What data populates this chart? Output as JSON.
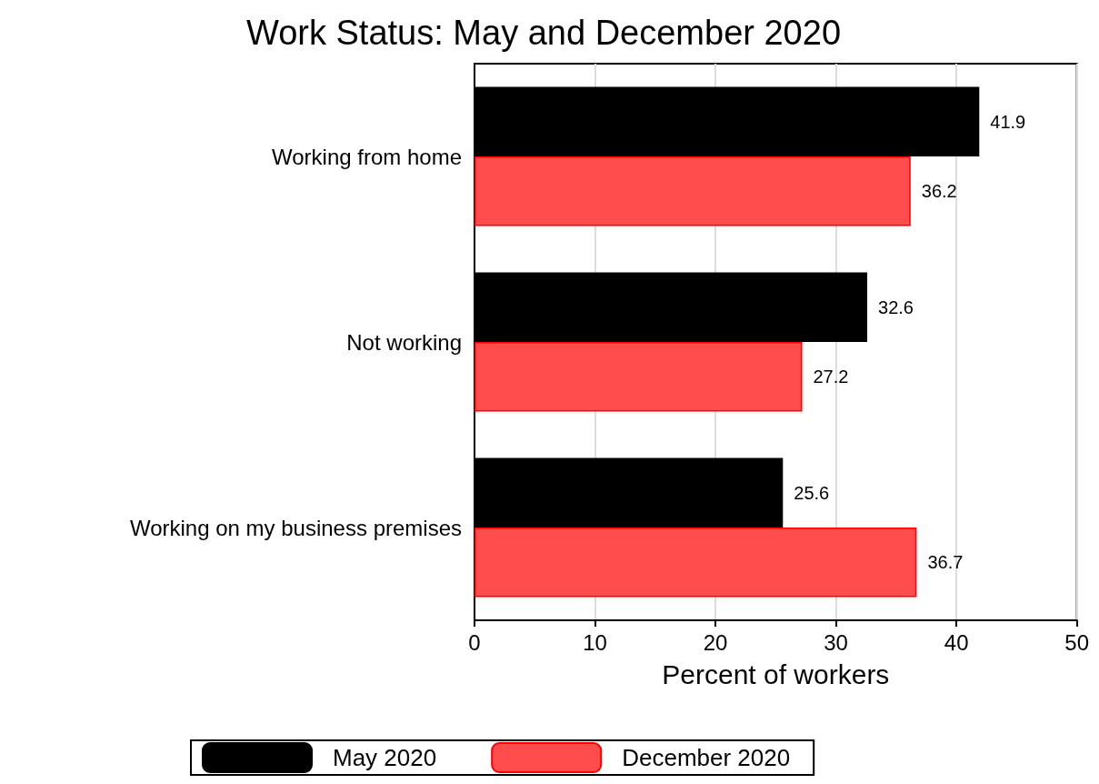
{
  "chart_data": {
    "type": "bar",
    "orientation": "horizontal",
    "title": "Work Status: May and December 2020",
    "xlabel": "Percent of workers",
    "categories": [
      "Working from home",
      "Not working",
      "Working on my business premises"
    ],
    "series": [
      {
        "name": "May 2020",
        "color": "#000000",
        "values": [
          41.9,
          32.6,
          25.6
        ]
      },
      {
        "name": "December 2020",
        "color": "#ff4d4d",
        "values": [
          36.2,
          27.2,
          36.7
        ]
      }
    ],
    "xlim": [
      0,
      50
    ],
    "xticks": [
      0,
      10,
      20,
      30,
      40,
      50
    ],
    "grid": "x",
    "legend": "bottom",
    "data_labels": true
  }
}
